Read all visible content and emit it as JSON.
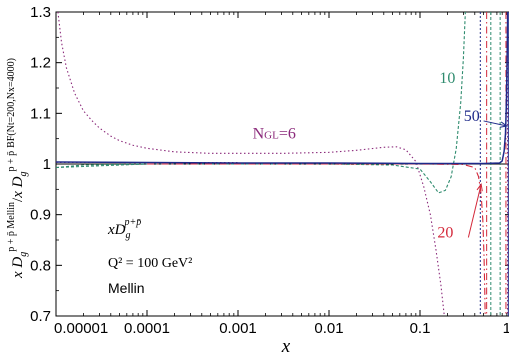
{
  "chart_data": {
    "type": "line",
    "xscale": "log",
    "xlim": [
      1e-05,
      1
    ],
    "ylim": [
      0.7,
      1.3
    ],
    "xlabel": "x",
    "ylabel": "x D_g^{p+p̄ Mellin} / x D_g^{p+p̄ BF(Nt=200,Nx=4000)}",
    "xticks": [
      {
        "v": 1e-05,
        "label": "0.00001"
      },
      {
        "v": 0.0001,
        "label": "0.0001"
      },
      {
        "v": 0.001,
        "label": "0.001"
      },
      {
        "v": 0.01,
        "label": "0.01"
      },
      {
        "v": 0.1,
        "label": "0.1"
      },
      {
        "v": 1,
        "label": "1"
      }
    ],
    "yticks": [
      {
        "v": 0.7,
        "label": "0.7"
      },
      {
        "v": 0.8,
        "label": "0.8"
      },
      {
        "v": 0.9,
        "label": "0.9"
      },
      {
        "v": 1.0,
        "label": "1"
      },
      {
        "v": 1.1,
        "label": "1.1"
      },
      {
        "v": 1.2,
        "label": "1.2"
      },
      {
        "v": 1.3,
        "label": "1.3"
      }
    ],
    "series": [
      {
        "name": "NGL=6",
        "color": "#8b2a7b",
        "dash": "1.5 2.5",
        "width": 1.1,
        "points": [
          [
            1.05e-05,
            1.3
          ],
          [
            1.15e-05,
            1.24
          ],
          [
            1.3e-05,
            1.19
          ],
          [
            1.6e-05,
            1.14
          ],
          [
            2e-05,
            1.105
          ],
          [
            2.5e-05,
            1.085
          ],
          [
            3e-05,
            1.071
          ],
          [
            4e-05,
            1.055
          ],
          [
            5e-05,
            1.046
          ],
          [
            7e-05,
            1.037
          ],
          [
            0.0001,
            1.031
          ],
          [
            0.0002,
            1.024
          ],
          [
            0.0005,
            1.021
          ],
          [
            0.001,
            1.021
          ],
          [
            0.003,
            1.021
          ],
          [
            0.01,
            1.023
          ],
          [
            0.02,
            1.027
          ],
          [
            0.04,
            1.033
          ],
          [
            0.055,
            1.034
          ],
          [
            0.07,
            1.028
          ],
          [
            0.09,
            1.005
          ],
          [
            0.11,
            0.955
          ],
          [
            0.13,
            0.9
          ],
          [
            0.15,
            0.83
          ],
          [
            0.17,
            0.76
          ],
          [
            0.185,
            0.7
          ]
        ]
      },
      {
        "name": "NGL=10",
        "color": "#2e8b6e",
        "dash": "3 2",
        "width": 1.1,
        "points": [
          [
            1e-05,
            0.993
          ],
          [
            2e-05,
            0.998
          ],
          [
            0.0001,
            1.0
          ],
          [
            0.01,
            1.0
          ],
          [
            0.05,
            0.998
          ],
          [
            0.1,
            0.99
          ],
          [
            0.13,
            0.965
          ],
          [
            0.16,
            0.943
          ],
          [
            0.19,
            0.948
          ],
          [
            0.22,
            0.975
          ],
          [
            0.25,
            1.03
          ],
          [
            0.28,
            1.12
          ],
          [
            0.3,
            1.21
          ],
          [
            0.315,
            1.3
          ]
        ]
      },
      {
        "name": "NGL=20",
        "color": "#d4283a",
        "dash": "7 3 1.5 3",
        "width": 1.1,
        "points": [
          [
            0.0001,
            1.0
          ],
          [
            0.1,
            1.0
          ],
          [
            0.3,
            0.999
          ],
          [
            0.4,
            0.993
          ],
          [
            0.44,
            0.975
          ],
          [
            0.47,
            0.94
          ],
          [
            0.49,
            0.89
          ],
          [
            0.505,
            0.82
          ],
          [
            0.515,
            0.75
          ],
          [
            0.52,
            0.7
          ]
        ]
      },
      {
        "name": "NGL=50",
        "color": "#1f2a8a",
        "dash": "",
        "width": 1.5,
        "points": [
          [
            1e-05,
            1.004
          ],
          [
            0.0001,
            1.003
          ],
          [
            0.001,
            1.002
          ],
          [
            0.01,
            1.002
          ],
          [
            0.1,
            1.001
          ],
          [
            0.5,
            1.001
          ],
          [
            0.75,
            1.002
          ],
          [
            0.8,
            1.006
          ],
          [
            0.84,
            1.025
          ],
          [
            0.87,
            1.06
          ],
          [
            0.89,
            1.12
          ],
          [
            0.905,
            1.2
          ],
          [
            0.92,
            1.3
          ]
        ]
      }
    ],
    "extra_lines": [
      {
        "color": "#2e8b6e",
        "dash": "3 2",
        "points": [
          [
            1e-05,
            0.993
          ],
          [
            0.0001,
            1.0
          ]
        ]
      },
      {
        "color": "#8b2a7b",
        "dash": "1.5 2.5",
        "points": [
          [
            1e-05,
            1.003
          ],
          [
            0.001,
            1.003
          ]
        ]
      }
    ],
    "vlines": [
      {
        "x": 0.46,
        "color": "#1f2a8a",
        "dash": "2 2"
      },
      {
        "x": 0.54,
        "color": "#d4283a",
        "dash": "7 3 1.5 3"
      },
      {
        "x": 0.6,
        "color": "#2e8b6e",
        "dash": "3 2"
      },
      {
        "x": 0.76,
        "color": "#2e8b6e",
        "dash": "3 2"
      },
      {
        "x": 0.88,
        "color": "#d4283a",
        "dash": "7 3 1.5 3"
      },
      {
        "x": 0.915,
        "color": "#8b2a7b",
        "dash": "1.5 2.5"
      },
      {
        "x": 0.935,
        "color": "#1f2a8a",
        "dash": ""
      }
    ],
    "annotations": {
      "ngl6": {
        "label_main": "N",
        "label_sub": "GL",
        "label_rest": "=6",
        "x": 0.0025,
        "y": 1.05,
        "color": "#8b2a7b"
      },
      "n10": {
        "text": "10",
        "x": 0.2,
        "y": 1.16,
        "color": "#2e8b6e"
      },
      "n20": {
        "text": "20",
        "x": 0.19,
        "y": 0.855,
        "color": "#d4283a"
      },
      "n50": {
        "text": "50",
        "x": 0.37,
        "y": 1.085,
        "color": "#1f2a8a"
      },
      "arrows": [
        {
          "from": [
            0.5,
            1.085
          ],
          "to": [
            0.9,
            1.075
          ],
          "color": "#1f2a8a"
        },
        {
          "from": [
            0.34,
            0.855
          ],
          "to": [
            0.47,
            0.96
          ],
          "color": "#d4283a"
        }
      ]
    },
    "info": {
      "line1_base": "xD",
      "line1_sub": "g",
      "line1_sup": "p+p̄",
      "line2": "Q² = 100 GeV²",
      "line3": "Mellin"
    },
    "ylabel_parts": {
      "num_base": "x D",
      "num_sub": "g",
      "num_sup": "p + p̄ Mellin",
      "slash": "/",
      "den_base": "x D",
      "den_sub": "g",
      "den_sup": "p + p̄",
      "den_tail": "BF(Nt=200,Nx=4000)"
    }
  }
}
